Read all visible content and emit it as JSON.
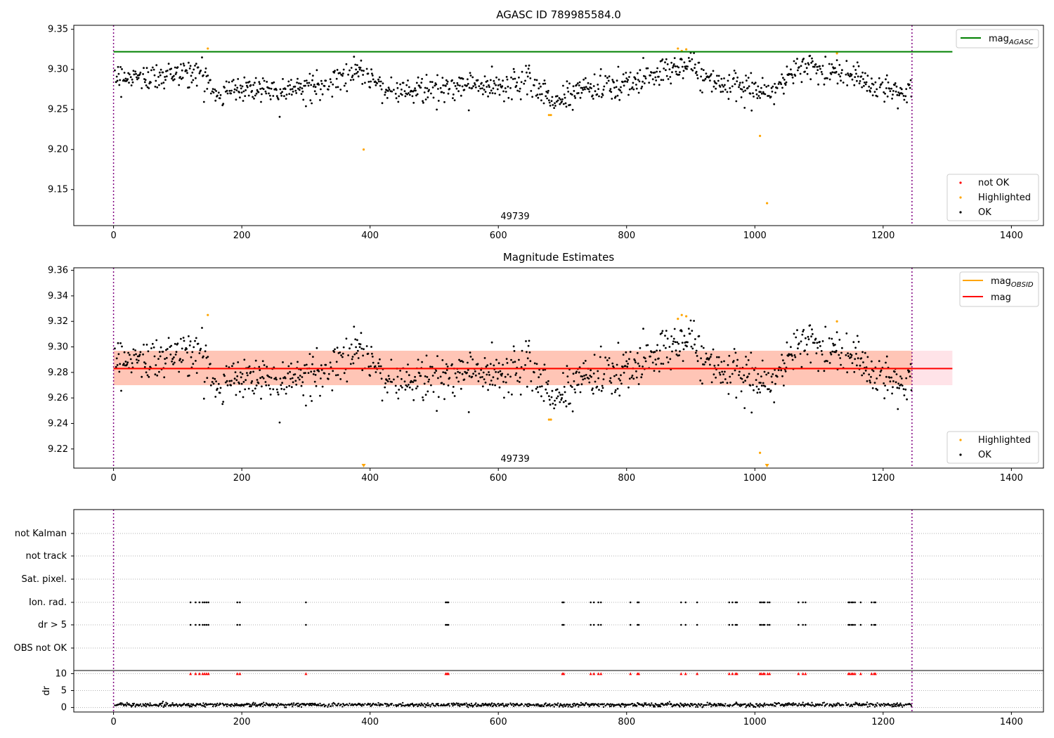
{
  "colors": {
    "ok": "#000000",
    "highlighted": "#ffa500",
    "not_ok": "#ff0000",
    "agasc_line": "#008000",
    "obsid_line": "#ffa500",
    "mag_line": "#ff0000",
    "obs_boundary": "#800080",
    "band_pink": "#ffc0cb",
    "band_orange": "#ffa07a"
  },
  "chart_data": [
    {
      "type": "scatter",
      "title": "AGASC ID 789985584.0",
      "xlim": [
        -62,
        1450
      ],
      "ylim": [
        9.105,
        9.355
      ],
      "xticks": [
        0,
        200,
        400,
        600,
        800,
        1000,
        1200,
        1400
      ],
      "yticks": [
        9.15,
        9.2,
        9.25,
        9.3,
        9.35
      ],
      "ytick_labels": [
        "9.15",
        "9.20",
        "9.25",
        "9.30",
        "9.35"
      ],
      "mag_agasc": 9.322,
      "obs_boundaries": [
        0,
        1245
      ],
      "obsid_label": "49739",
      "legend_lines": [
        {
          "label": "mag",
          "sub": "AGASC",
          "color": "#008000"
        }
      ],
      "legend_points": [
        {
          "label": "not OK",
          "color": "#ff0000"
        },
        {
          "label": "Highlighted",
          "color": "#ffa500"
        },
        {
          "label": "OK",
          "color": "#000000"
        }
      ],
      "highlighted_points": [
        [
          147,
          9.326
        ],
        [
          390,
          9.2
        ],
        [
          679,
          9.243
        ],
        [
          682,
          9.243
        ],
        [
          880,
          9.326
        ],
        [
          886,
          9.323
        ],
        [
          893,
          9.325
        ],
        [
          1008,
          9.217
        ],
        [
          1019,
          9.133
        ],
        [
          1128,
          9.32
        ]
      ],
      "trend": [
        [
          0,
          9.292
        ],
        [
          60,
          9.29
        ],
        [
          100,
          9.295
        ],
        [
          140,
          9.295
        ],
        [
          160,
          9.27
        ],
        [
          200,
          9.277
        ],
        [
          300,
          9.276
        ],
        [
          340,
          9.282
        ],
        [
          380,
          9.298
        ],
        [
          400,
          9.292
        ],
        [
          430,
          9.272
        ],
        [
          500,
          9.276
        ],
        [
          560,
          9.28
        ],
        [
          620,
          9.28
        ],
        [
          650,
          9.288
        ],
        [
          675,
          9.268
        ],
        [
          690,
          9.258
        ],
        [
          720,
          9.276
        ],
        [
          800,
          9.278
        ],
        [
          830,
          9.292
        ],
        [
          870,
          9.302
        ],
        [
          900,
          9.305
        ],
        [
          930,
          9.285
        ],
        [
          980,
          9.275
        ],
        [
          1030,
          9.272
        ],
        [
          1060,
          9.295
        ],
        [
          1080,
          9.306
        ],
        [
          1110,
          9.298
        ],
        [
          1160,
          9.292
        ],
        [
          1190,
          9.276
        ],
        [
          1245,
          9.272
        ]
      ]
    },
    {
      "type": "scatter",
      "title": "Magnitude Estimates",
      "xlim": [
        -62,
        1450
      ],
      "ylim": [
        9.205,
        9.362
      ],
      "xticks": [
        0,
        200,
        400,
        600,
        800,
        1000,
        1200,
        1400
      ],
      "yticks": [
        9.22,
        9.24,
        9.26,
        9.28,
        9.3,
        9.32,
        9.34,
        9.36
      ],
      "ytick_labels": [
        "9.22",
        "9.24",
        "9.26",
        "9.28",
        "9.30",
        "9.32",
        "9.34",
        "9.36"
      ],
      "mag": 9.283,
      "band": [
        9.27,
        9.297
      ],
      "obs_boundaries": [
        0,
        1245
      ],
      "obsid_label": "49739",
      "legend_lines": [
        {
          "label": "mag",
          "sub": "OBSID",
          "color": "#ffa500"
        },
        {
          "label": "mag",
          "sub": "",
          "color": "#ff0000"
        }
      ],
      "legend_points": [
        {
          "label": "Highlighted",
          "color": "#ffa500"
        },
        {
          "label": "OK",
          "color": "#000000"
        }
      ],
      "highlighted_points": [
        [
          147,
          9.325
        ],
        [
          679,
          9.243
        ],
        [
          682,
          9.243
        ],
        [
          880,
          9.322
        ],
        [
          886,
          9.325
        ],
        [
          893,
          9.324
        ],
        [
          1008,
          9.217
        ],
        [
          1128,
          9.32
        ]
      ],
      "out_of_range_points": [
        390,
        1019
      ]
    },
    {
      "type": "scatter",
      "xlim": [
        -62,
        1450
      ],
      "xticks": [
        0,
        200,
        400,
        600,
        800,
        1000,
        1200,
        1400
      ],
      "flag_rows": [
        "not Kalman",
        "not track",
        "Sat. pixel.",
        "Ion. rad.",
        "dr > 5",
        "OBS not OK"
      ],
      "flag_times": [
        120,
        128,
        134,
        139,
        142,
        145,
        148,
        193,
        197,
        300,
        518,
        520,
        522,
        700,
        702,
        744,
        749,
        756,
        760,
        806,
        817,
        819,
        885,
        892,
        910,
        960,
        965,
        970,
        972,
        1008,
        1010,
        1013,
        1015,
        1020,
        1023,
        1068,
        1075,
        1079,
        1146,
        1148,
        1151,
        1153,
        1156,
        1165,
        1182,
        1186,
        1188
      ],
      "dr_label": "dr",
      "dr_ylim": [
        -0.5,
        10.5
      ],
      "dr_yticks": [
        0,
        5,
        10
      ],
      "dr_ytick_labels": [
        "0",
        "5",
        "10"
      ],
      "dr_clip": 10,
      "dr_typical": 0.8
    }
  ]
}
